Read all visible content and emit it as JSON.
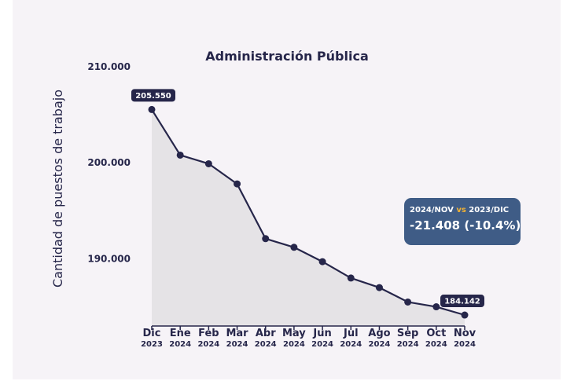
{
  "chart_data": {
    "type": "area",
    "title": "Administración Pública",
    "xlabel": "",
    "ylabel": "Cantidad de puestos de trabajo",
    "ylim": [
      183000,
      210000
    ],
    "yticks": [
      "210.000",
      "200.000",
      "190.000"
    ],
    "ytick_values": [
      210000,
      200000,
      190000
    ],
    "categories": [
      {
        "month": "Dic",
        "year": "2023"
      },
      {
        "month": "Ene",
        "year": "2024"
      },
      {
        "month": "Feb",
        "year": "2024"
      },
      {
        "month": "Mar",
        "year": "2024"
      },
      {
        "month": "Abr",
        "year": "2024"
      },
      {
        "month": "May",
        "year": "2024"
      },
      {
        "month": "Jun",
        "year": "2024"
      },
      {
        "month": "Jul",
        "year": "2024"
      },
      {
        "month": "Ago",
        "year": "2024"
      },
      {
        "month": "Sep",
        "year": "2024"
      },
      {
        "month": "Oct",
        "year": "2024"
      },
      {
        "month": "Nov",
        "year": "2024"
      }
    ],
    "values": [
      205550,
      200800,
      199900,
      197800,
      192100,
      191200,
      189700,
      188000,
      187000,
      185500,
      185000,
      184142
    ],
    "data_labels": [
      {
        "index": 0,
        "text": "205.550"
      },
      {
        "index": 11,
        "text": "184.142"
      }
    ],
    "grid": false,
    "colors": {
      "line": "#26264a",
      "area": "#e5e3e6",
      "label_bg": "#26264a"
    }
  },
  "summary": {
    "left": "2024/NOV",
    "vs": "vs",
    "right": "2023/DIC",
    "value": "-21.408 (-10.4%)",
    "bg_color": "#3f5c86",
    "vs_color": "#f2b233"
  }
}
